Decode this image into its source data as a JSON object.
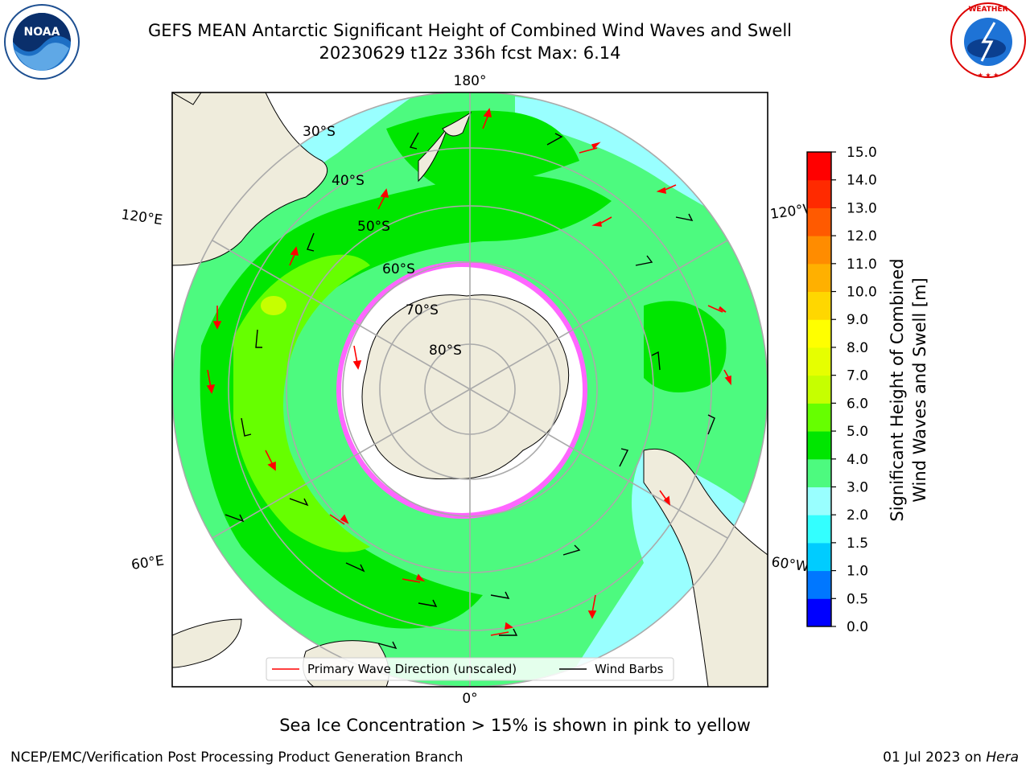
{
  "title": {
    "line1": "GEFS MEAN Antarctic Significant Height of Combined Wind Waves and Swell",
    "line2": "20230629 t12z 336h fcst   Max: 6.14"
  },
  "logos": {
    "left": "NOAA",
    "right": "NATIONAL WEATHER SERVICE"
  },
  "map": {
    "projection": "south-polar-stereographic",
    "lon_labels": [
      "180°",
      "120°E",
      "120°W",
      "60°E",
      "60°W",
      "0°"
    ],
    "lat_labels": [
      "30°S",
      "40°S",
      "50°S",
      "60°S",
      "70°S",
      "80°S"
    ],
    "legend": {
      "wave_label": "Primary Wave Direction (unscaled)",
      "barb_label": "Wind Barbs",
      "wave_color": "#ff0000",
      "barb_color": "#000000"
    }
  },
  "colorbar": {
    "label_line1": "Significant Height of Combined",
    "label_line2": "Wind Waves and Swell [m]",
    "ticks": [
      "0.0",
      "0.5",
      "1.0",
      "1.5",
      "2.0",
      "3.0",
      "4.0",
      "5.0",
      "6.0",
      "7.0",
      "8.0",
      "9.0",
      "10.0",
      "11.0",
      "12.0",
      "13.0",
      "14.0",
      "15.0"
    ],
    "colors": [
      "#0000ff",
      "#0077ff",
      "#00ccff",
      "#33ffff",
      "#99ffff",
      "#4dfa7f",
      "#00e600",
      "#66ff00",
      "#c6ff00",
      "#e6ff00",
      "#ffff00",
      "#ffd700",
      "#ffb000",
      "#ff8c00",
      "#ff5a00",
      "#ff2a00",
      "#ff0000"
    ]
  },
  "sea_ice_note": "Sea Ice Concentration > 15% is shown in pink to yellow",
  "footer": {
    "left": "NCEP/EMC/Verification Post Processing Product Generation Branch",
    "right_prefix": "01 Jul 2023 on ",
    "right_italic": "Hera"
  }
}
